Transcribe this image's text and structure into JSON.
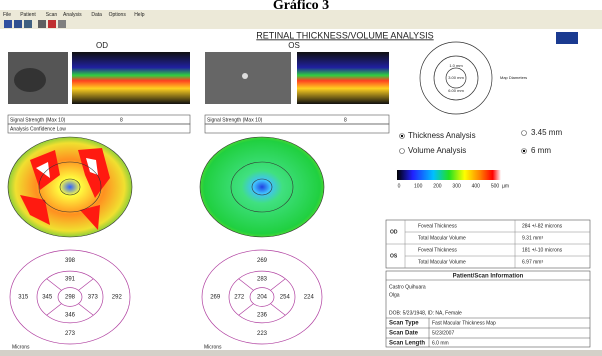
{
  "header": {
    "caption": "Gráfico 3",
    "menu": [
      "File",
      "Patient",
      "Scan",
      "Analysis",
      "Data",
      "Options",
      "Help"
    ],
    "title": "RETINAL THICKNESS/VOLUME ANALYSIS"
  },
  "od": {
    "label": "OD",
    "signal_label": "Signal Strength (Max 10)",
    "signal": 8,
    "confidence": "Analysis Confidence Low",
    "grid": {
      "outer": [
        398,
        292,
        273,
        315
      ],
      "inner": [
        391,
        373,
        346,
        345
      ],
      "center": 298
    },
    "units": "Microns"
  },
  "os": {
    "label": "OS",
    "signal_label": "Signal Strength (Max 10)",
    "signal": 8,
    "grid": {
      "outer": [
        269,
        224,
        223,
        269
      ],
      "inner": [
        283,
        254,
        236,
        272
      ],
      "center": 204
    },
    "units": "Microns"
  },
  "map_diameters": {
    "rings": [
      "1.0 mm",
      "3.00 mm",
      "6.00 mm"
    ],
    "label": "Map Diameters"
  },
  "options": {
    "analysis": [
      "Thickness Analysis",
      "Volume Analysis"
    ],
    "size": [
      "3.45 mm",
      "6 mm"
    ]
  },
  "scale": {
    "ticks": [
      0,
      100,
      200,
      300,
      400,
      500
    ],
    "unit": "µm"
  },
  "results": {
    "rows": [
      [
        "OD",
        "Foveal Thickness",
        "284 +/-82 microns"
      ],
      [
        "",
        "Total Macular Volume",
        "9.31 mm³"
      ],
      [
        "OS",
        "Foveal Thickness",
        "181 +/-10 microns"
      ],
      [
        "",
        "Total Macular Volume",
        "6.97 mm³"
      ]
    ]
  },
  "patient": {
    "title": "Patient/Scan Information",
    "last_name": "Castro Quihuara",
    "first_name": "Olga",
    "dob": "DOB: 5/23/1948, ID: NA, Female",
    "rows": [
      [
        "Scan Type",
        "Fast Macular Thickness Map"
      ],
      [
        "Scan Date",
        "5/23/2007"
      ],
      [
        "Scan Length",
        "6.0 mm"
      ]
    ]
  }
}
